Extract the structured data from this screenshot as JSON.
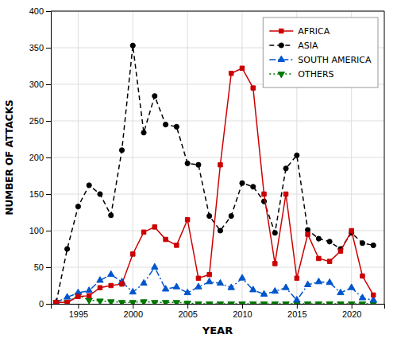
{
  "chart_data": {
    "type": "line",
    "x": [
      1993,
      1994,
      1995,
      1996,
      1997,
      1998,
      1999,
      2000,
      2001,
      2002,
      2003,
      2004,
      2005,
      2006,
      2007,
      2008,
      2009,
      2010,
      2011,
      2012,
      2013,
      2014,
      2015,
      2016,
      2017,
      2018,
      2019,
      2020,
      2021,
      2022
    ],
    "series": [
      {
        "name": "AFRICA",
        "color": "#cc0000",
        "marker": "square",
        "line_style": "solid",
        "values": [
          2,
          2,
          10,
          11,
          22,
          25,
          27,
          68,
          98,
          105,
          88,
          80,
          115,
          35,
          40,
          190,
          315,
          322,
          295,
          150,
          55,
          150,
          35,
          95,
          62,
          58,
          72,
          100,
          38,
          12
        ]
      },
      {
        "name": "ASIA",
        "color": "#000000",
        "marker": "circle",
        "line_style": "dashed",
        "values": [
          2,
          75,
          133,
          162,
          150,
          121,
          210,
          353,
          234,
          284,
          245,
          242,
          192,
          190,
          120,
          100,
          120,
          165,
          160,
          140,
          97,
          185,
          203,
          101,
          89,
          85,
          75,
          97,
          83,
          80
        ]
      },
      {
        "name": "SOUTH AMERICA",
        "color": "#0055cc",
        "marker": "triangle-up",
        "line_style": "dashdot",
        "values": [
          2,
          9,
          15,
          18,
          32,
          40,
          30,
          16,
          28,
          50,
          20,
          23,
          15,
          23,
          30,
          28,
          22,
          35,
          19,
          13,
          17,
          22,
          5,
          26,
          30,
          29,
          15,
          22,
          8,
          5
        ]
      },
      {
        "name": "OTHERS",
        "color": "#007700",
        "marker": "triangle-down",
        "line_style": "dotted",
        "values": [
          2,
          2,
          12,
          5,
          4,
          3,
          2,
          2,
          3,
          2,
          2,
          2,
          1,
          0,
          0,
          0,
          0,
          0,
          0,
          0,
          0,
          0,
          0,
          0,
          0,
          0,
          0,
          0,
          0,
          0
        ]
      }
    ],
    "xlabel": "YEAR",
    "ylabel": "NUMBER OF ATTACKS",
    "xlim": [
      1992.5,
      2023
    ],
    "xticks": [
      1995,
      2000,
      2005,
      2010,
      2015,
      2020
    ],
    "ylim": [
      0,
      400
    ],
    "yticks": [
      0,
      50,
      100,
      150,
      200,
      250,
      300,
      350,
      400
    ],
    "grid": true,
    "legend": "upper right"
  }
}
